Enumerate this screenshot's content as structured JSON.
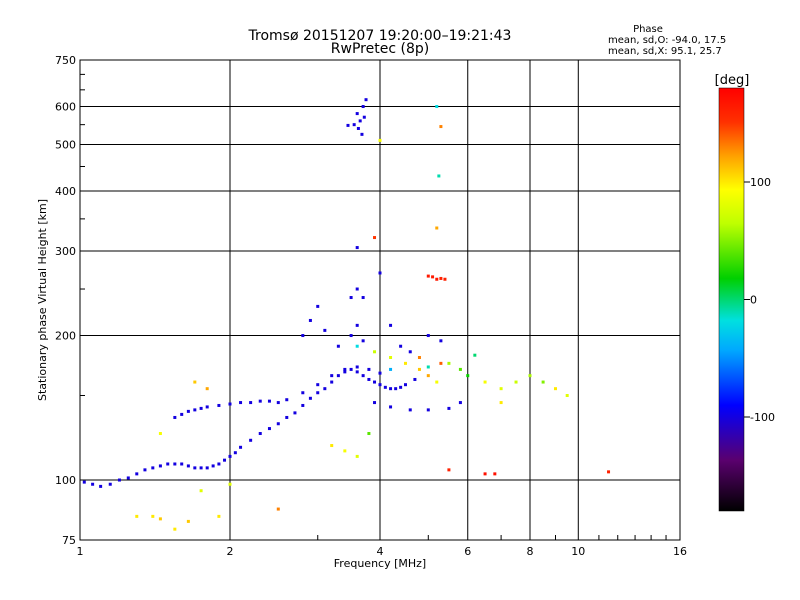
{
  "chart_data": {
    "type": "scatter",
    "title_line1": "Tromsø 20151207 19:20:00–19:21:43",
    "title_line2": "RwPretec (8p)",
    "xlabel": "Frequency [MHz]",
    "ylabel": "Stationary phase Virtual Height [km]",
    "x_scale": "log",
    "y_scale": "log",
    "xlim": [
      1,
      16
    ],
    "ylim": [
      75,
      750
    ],
    "grid": true,
    "x_ticks": [
      {
        "value": 1,
        "label": "1"
      },
      {
        "value": 2,
        "label": "2"
      },
      {
        "value": 4,
        "label": "4"
      },
      {
        "value": 6,
        "label": "6"
      },
      {
        "value": 8,
        "label": "8"
      },
      {
        "value": 10,
        "label": "10"
      },
      {
        "value": 16,
        "label": "16"
      }
    ],
    "y_ticks": [
      {
        "value": 75,
        "label": "75"
      },
      {
        "value": 100,
        "label": "100"
      },
      {
        "value": 200,
        "label": "200"
      },
      {
        "value": 300,
        "label": "300"
      },
      {
        "value": 400,
        "label": "400"
      },
      {
        "value": 500,
        "label": "500"
      },
      {
        "value": 600,
        "label": "600"
      },
      {
        "value": 750,
        "label": "750"
      }
    ],
    "stats": {
      "heading": "Phase",
      "line1": "mean, sd,O: -94.0, 17.5",
      "line2": "mean, sd,X:  95.1, 25.7"
    },
    "colorbar": {
      "label": "[deg]",
      "range": [
        -180,
        180
      ],
      "ticks": [
        {
          "value": 100,
          "label": "100"
        },
        {
          "value": 0,
          "label": "0"
        },
        {
          "value": -100,
          "label": "-100"
        }
      ]
    },
    "series": [
      {
        "values": [
          [
            1.02,
            99,
            -100
          ],
          [
            1.06,
            98,
            -100
          ],
          [
            1.1,
            97,
            -100
          ],
          [
            1.15,
            98,
            -100
          ],
          [
            1.2,
            100,
            -100
          ],
          [
            1.25,
            101,
            -100
          ],
          [
            1.3,
            103,
            -100
          ],
          [
            1.35,
            105,
            -100
          ],
          [
            1.4,
            106,
            -100
          ],
          [
            1.45,
            107,
            -100
          ],
          [
            1.5,
            108,
            -100
          ],
          [
            1.55,
            108,
            -100
          ],
          [
            1.6,
            108,
            -100
          ],
          [
            1.65,
            107,
            -100
          ],
          [
            1.7,
            106,
            -100
          ],
          [
            1.75,
            106,
            -100
          ],
          [
            1.8,
            106,
            -100
          ],
          [
            1.85,
            107,
            -100
          ],
          [
            1.9,
            108,
            -100
          ],
          [
            1.95,
            110,
            -100
          ],
          [
            2.0,
            112,
            -100
          ],
          [
            2.05,
            114,
            -100
          ],
          [
            2.1,
            117,
            -100
          ],
          [
            2.2,
            121,
            -100
          ],
          [
            2.3,
            125,
            -100
          ],
          [
            2.4,
            128,
            -100
          ],
          [
            2.5,
            131,
            -100
          ],
          [
            2.6,
            135,
            -100
          ],
          [
            2.7,
            138,
            -100
          ],
          [
            2.8,
            143,
            -100
          ],
          [
            2.9,
            148,
            -100
          ],
          [
            3.0,
            152,
            -100
          ],
          [
            3.1,
            155,
            -100
          ],
          [
            3.2,
            160,
            -100
          ],
          [
            3.3,
            165,
            -100
          ],
          [
            3.4,
            168,
            -100
          ],
          [
            3.5,
            170,
            -100
          ],
          [
            3.6,
            168,
            -100
          ],
          [
            3.7,
            165,
            -100
          ],
          [
            3.8,
            162,
            -100
          ],
          [
            3.9,
            160,
            -100
          ],
          [
            4.0,
            158,
            -100
          ],
          [
            4.1,
            156,
            -100
          ],
          [
            4.2,
            155,
            -100
          ],
          [
            4.3,
            155,
            -100
          ],
          [
            4.4,
            156,
            -100
          ],
          [
            4.5,
            158,
            -100
          ],
          [
            4.7,
            162,
            -100
          ],
          [
            1.55,
            135,
            -100
          ],
          [
            1.6,
            137,
            -100
          ],
          [
            1.65,
            139,
            -100
          ],
          [
            1.7,
            140,
            -100
          ],
          [
            1.75,
            141,
            -100
          ],
          [
            1.8,
            142,
            -100
          ],
          [
            1.9,
            143,
            -100
          ],
          [
            2.0,
            144,
            -100
          ],
          [
            2.1,
            145,
            -100
          ],
          [
            2.2,
            145,
            -100
          ],
          [
            2.3,
            146,
            -100
          ],
          [
            2.4,
            146,
            -100
          ],
          [
            2.5,
            145,
            -100
          ],
          [
            2.6,
            147,
            -100
          ],
          [
            2.8,
            152,
            -100
          ],
          [
            3.0,
            158,
            -100
          ],
          [
            3.2,
            165,
            -100
          ],
          [
            3.4,
            170,
            -100
          ],
          [
            3.6,
            172,
            -100
          ],
          [
            3.8,
            170,
            -100
          ],
          [
            4.0,
            167,
            -100
          ],
          [
            2.8,
            200,
            -100
          ],
          [
            2.9,
            215,
            -100
          ],
          [
            3.0,
            230,
            -100
          ],
          [
            3.1,
            205,
            -100
          ],
          [
            3.3,
            190,
            -100
          ],
          [
            3.5,
            200,
            -100
          ],
          [
            3.6,
            210,
            -100
          ],
          [
            3.7,
            195,
            -100
          ],
          [
            3.5,
            240,
            -100
          ],
          [
            3.7,
            240,
            -100
          ],
          [
            4.2,
            210,
            -100
          ],
          [
            4.4,
            190,
            -100
          ],
          [
            4.6,
            185,
            -100
          ],
          [
            5.0,
            200,
            -100
          ],
          [
            5.3,
            195,
            -100
          ],
          [
            3.6,
            580,
            -100
          ],
          [
            3.65,
            560,
            -100
          ],
          [
            3.7,
            600,
            -100
          ],
          [
            3.75,
            620,
            -100
          ],
          [
            3.62,
            540,
            -100
          ],
          [
            3.68,
            525,
            -100
          ],
          [
            3.72,
            570,
            -100
          ],
          [
            3.55,
            550,
            -100
          ],
          [
            3.45,
            548,
            -100
          ],
          [
            3.9,
            145,
            -100
          ],
          [
            4.2,
            142,
            -100
          ],
          [
            4.6,
            140,
            -100
          ],
          [
            5.0,
            140,
            -100
          ],
          [
            5.5,
            141,
            -100
          ],
          [
            5.8,
            145,
            -100
          ],
          [
            3.6,
            305,
            -100
          ],
          [
            4.0,
            270,
            -100
          ],
          [
            3.6,
            250,
            -100
          ],
          [
            3.6,
            190,
            -20
          ],
          [
            3.9,
            185,
            70
          ],
          [
            4.2,
            180,
            80
          ],
          [
            4.5,
            175,
            100
          ],
          [
            4.8,
            170,
            110
          ],
          [
            5.0,
            165,
            120
          ],
          [
            5.2,
            160,
            90
          ],
          [
            5.5,
            175,
            60
          ],
          [
            5.8,
            170,
            40
          ],
          [
            6.0,
            165,
            20
          ],
          [
            6.5,
            160,
            90
          ],
          [
            7.0,
            155,
            80
          ],
          [
            7.5,
            160,
            70
          ],
          [
            8.0,
            165,
            60
          ],
          [
            8.5,
            160,
            50
          ],
          [
            9.0,
            155,
            100
          ],
          [
            9.5,
            150,
            80
          ],
          [
            7.0,
            145,
            100
          ],
          [
            4.8,
            180,
            130
          ],
          [
            5.3,
            175,
            140
          ],
          [
            5.1,
            265,
            165
          ],
          [
            5.2,
            262,
            165
          ],
          [
            5.3,
            263,
            160
          ],
          [
            5.4,
            262,
            160
          ],
          [
            5.0,
            266,
            165
          ],
          [
            3.4,
            115,
            90
          ],
          [
            3.6,
            112,
            80
          ],
          [
            3.2,
            118,
            100
          ],
          [
            3.8,
            125,
            40
          ],
          [
            5.5,
            105,
            160
          ],
          [
            6.5,
            103,
            170
          ],
          [
            6.8,
            103,
            170
          ],
          [
            1.3,
            84,
            100
          ],
          [
            1.4,
            84,
            100
          ],
          [
            1.45,
            83,
            110
          ],
          [
            1.55,
            79,
            100
          ],
          [
            1.65,
            82,
            110
          ],
          [
            1.9,
            84,
            100
          ],
          [
            1.75,
            95,
            80
          ],
          [
            2.0,
            98,
            80
          ],
          [
            1.45,
            125,
            90
          ],
          [
            1.8,
            155,
            120
          ],
          [
            1.7,
            160,
            110
          ],
          [
            2.5,
            87,
            130
          ],
          [
            5.2,
            600,
            -20
          ],
          [
            5.3,
            545,
            130
          ],
          [
            5.25,
            430,
            -10
          ],
          [
            4.0,
            510,
            90
          ],
          [
            3.9,
            320,
            150
          ],
          [
            5.2,
            335,
            120
          ],
          [
            11.5,
            104,
            160
          ],
          [
            4.2,
            170,
            -40
          ],
          [
            5.0,
            172,
            -10
          ],
          [
            6.2,
            182,
            0
          ]
        ]
      }
    ]
  }
}
